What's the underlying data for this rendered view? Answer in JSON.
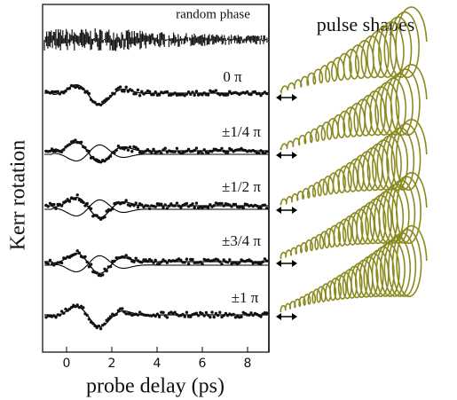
{
  "figure": {
    "y_label": "Kerr rotation",
    "x_label": "probe delay (ps)",
    "x_ticks": [
      0,
      2,
      4,
      6,
      8
    ],
    "traces": [
      "random phase",
      "0 π",
      "±1/4 π",
      "±1/2 π",
      "±3/4 π",
      "±1 π"
    ],
    "panel_title": "pulse shapes"
  }
}
